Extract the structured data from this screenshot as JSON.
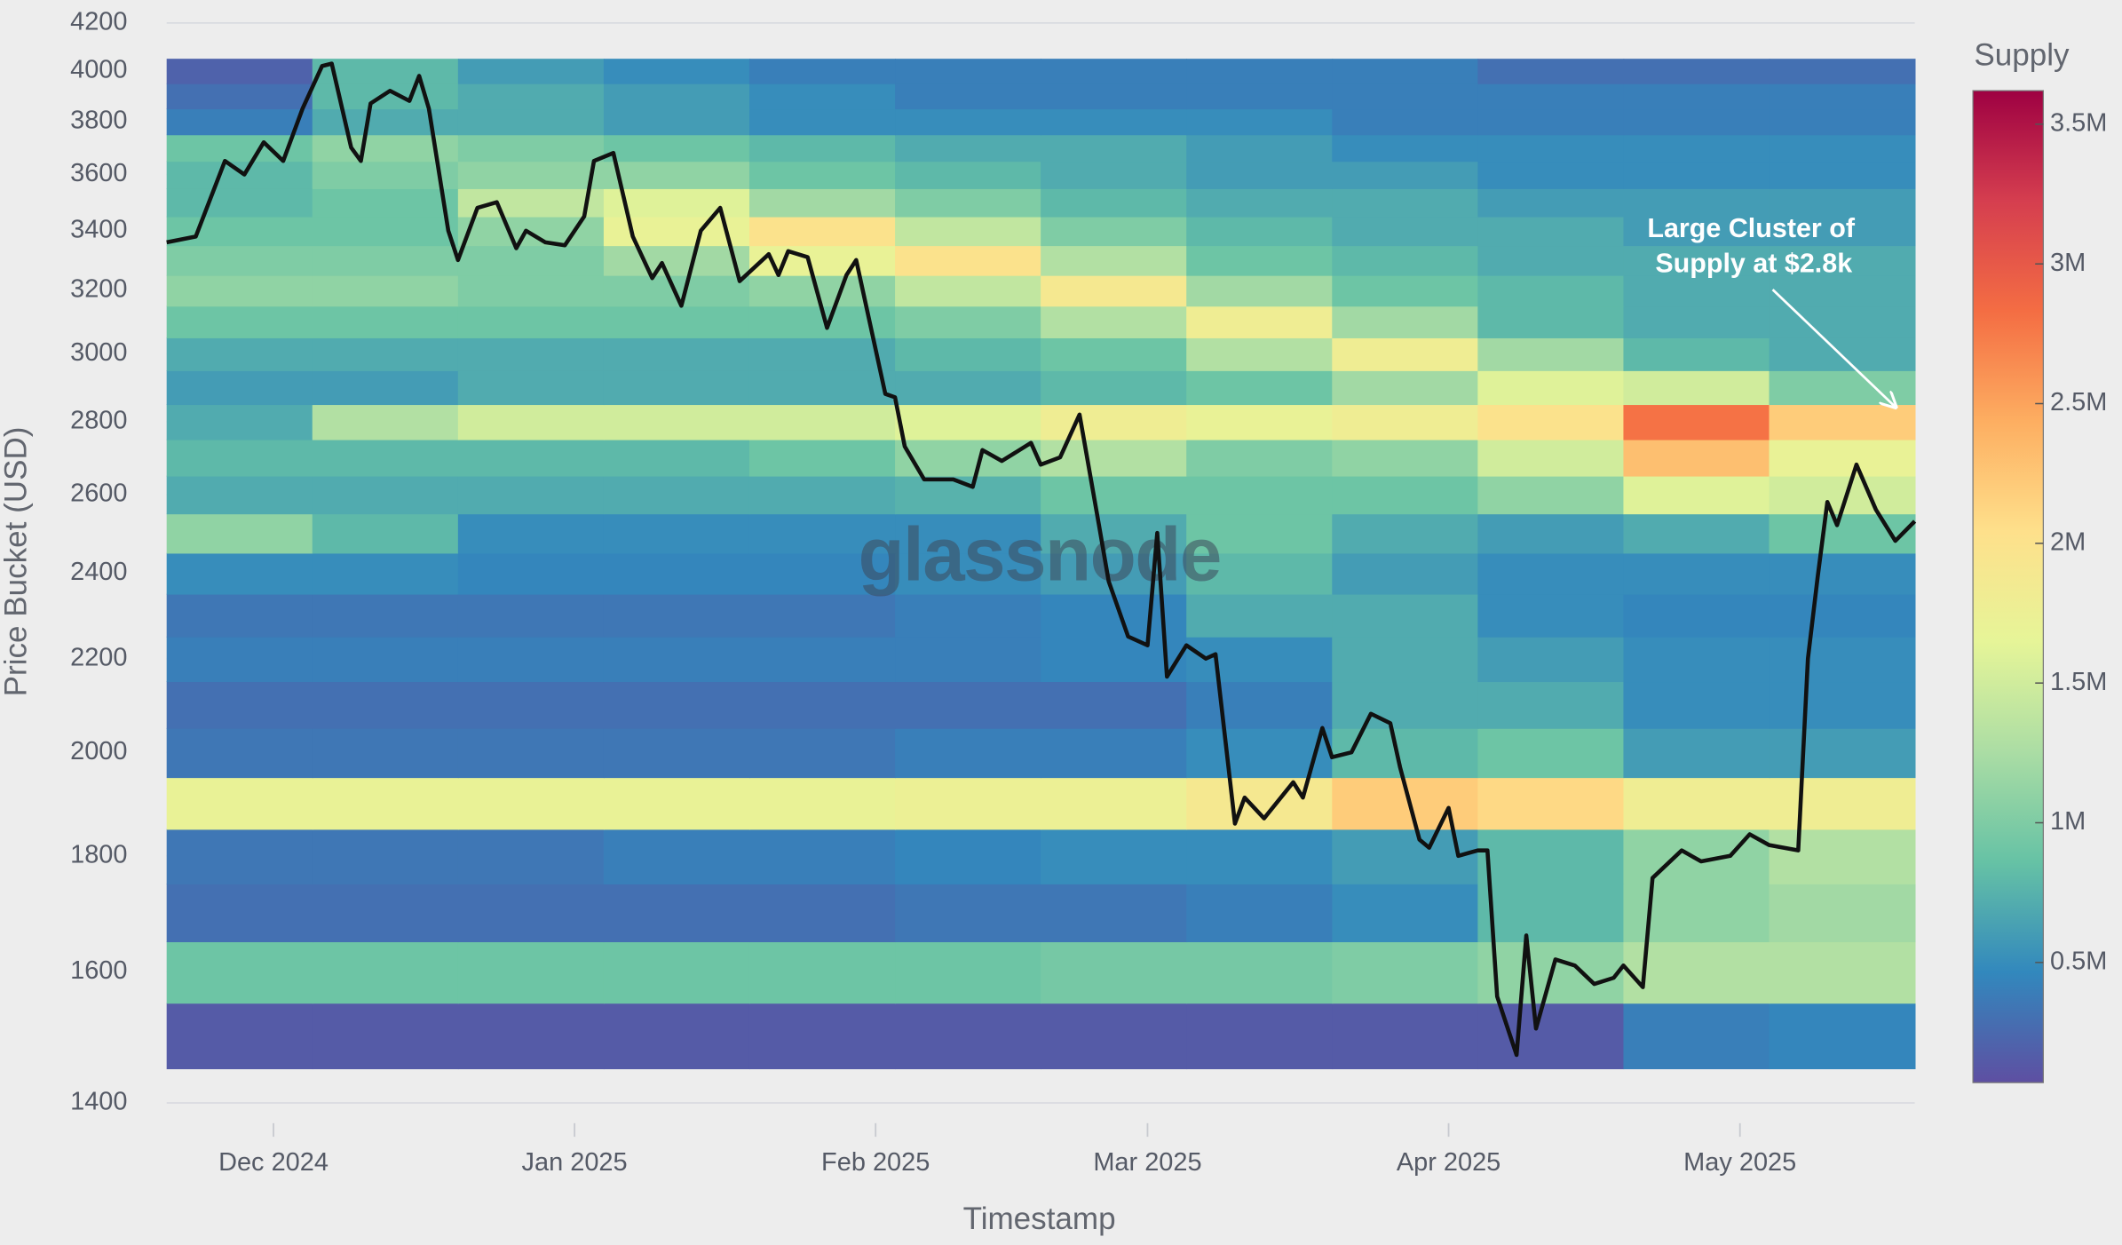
{
  "chart_data": {
    "type": "heatmap",
    "x_label": "Timestamp",
    "y_label": "Price Bucket (USD)",
    "colorbar_title": "Supply",
    "watermark": "glassnode",
    "annotation": [
      "Large Cluster of",
      "Supply at $2.8k"
    ],
    "xlim": [
      "2024-11-20",
      "2025-05-19"
    ],
    "xticks": [
      {
        "value": "2024-12-01",
        "label": "Dec 2024"
      },
      {
        "value": "2025-01-01",
        "label": "Jan 2025"
      },
      {
        "value": "2025-02-01",
        "label": "Feb 2025"
      },
      {
        "value": "2025-03-01",
        "label": "Mar 2025"
      },
      {
        "value": "2025-04-01",
        "label": "Apr 2025"
      },
      {
        "value": "2025-05-01",
        "label": "May 2025"
      }
    ],
    "ylim": [
      1400,
      4200
    ],
    "log_y": true,
    "grid": true,
    "yticks": [
      1400,
      1600,
      1800,
      2000,
      2200,
      2400,
      2600,
      2800,
      3000,
      3200,
      3400,
      3600,
      3800,
      4000,
      4200
    ],
    "colorscale": [
      "#5e4fa2",
      "#3288bd",
      "#66c2a5",
      "#abdda4",
      "#e6f598",
      "#fee08b",
      "#fdae61",
      "#f46d43",
      "#d53e4f",
      "#9e0142"
    ],
    "colorlim": [
      70000,
      3620000
    ],
    "colorticks": [
      {
        "value": 500000,
        "label": "0.5M"
      },
      {
        "value": 1000000,
        "label": "1M"
      },
      {
        "value": 1500000,
        "label": "1.5M"
      },
      {
        "value": 2000000,
        "label": "2M"
      },
      {
        "value": 2500000,
        "label": "2.5M"
      },
      {
        "value": 3000000,
        "label": "3M"
      },
      {
        "value": 3500000,
        "label": "3.5M"
      }
    ],
    "x_bins": [
      "2024-11-20",
      "2024-12-05",
      "2024-12-20",
      "2025-01-04",
      "2025-01-19",
      "2025-02-03",
      "2025-02-18",
      "2025-03-05",
      "2025-03-20",
      "2025-04-04",
      "2025-04-19",
      "2025-05-04",
      "2025-05-19"
    ],
    "y_bins": [
      1450,
      1550,
      1650,
      1750,
      1850,
      1950,
      2050,
      2150,
      2250,
      2350,
      2450,
      2550,
      2650,
      2750,
      2850,
      2950,
      3050,
      3150,
      3250,
      3350,
      3450,
      3550,
      3650,
      3750,
      3850,
      3950,
      4050
    ],
    "z": [
      [
        150000,
        150000,
        150000,
        150000,
        150000,
        150000,
        150000,
        150000,
        150000,
        150000,
        400000,
        450000
      ],
      [
        900000,
        900000,
        900000,
        900000,
        900000,
        900000,
        950000,
        950000,
        1000000,
        1100000,
        1300000,
        1300000
      ],
      [
        300000,
        300000,
        300000,
        300000,
        300000,
        350000,
        350000,
        400000,
        500000,
        800000,
        1100000,
        1200000
      ],
      [
        350000,
        350000,
        350000,
        400000,
        400000,
        450000,
        500000,
        500000,
        600000,
        800000,
        1100000,
        1300000
      ],
      [
        1700000,
        1700000,
        1700000,
        1700000,
        1700000,
        1750000,
        1750000,
        1900000,
        2200000,
        2100000,
        1800000,
        1800000
      ],
      [
        350000,
        350000,
        350000,
        350000,
        350000,
        400000,
        400000,
        500000,
        800000,
        900000,
        600000,
        600000
      ],
      [
        300000,
        300000,
        300000,
        300000,
        300000,
        300000,
        300000,
        400000,
        700000,
        700000,
        500000,
        500000
      ],
      [
        400000,
        400000,
        400000,
        400000,
        400000,
        400000,
        450000,
        500000,
        700000,
        600000,
        500000,
        500000
      ],
      [
        350000,
        350000,
        350000,
        350000,
        350000,
        400000,
        450000,
        700000,
        700000,
        500000,
        450000,
        450000
      ],
      [
        500000,
        500000,
        450000,
        450000,
        450000,
        500000,
        600000,
        800000,
        600000,
        500000,
        500000,
        500000
      ],
      [
        1100000,
        800000,
        500000,
        500000,
        500000,
        500000,
        700000,
        900000,
        700000,
        600000,
        700000,
        900000
      ],
      [
        700000,
        700000,
        700000,
        700000,
        700000,
        750000,
        900000,
        900000,
        900000,
        1100000,
        1600000,
        1500000
      ],
      [
        800000,
        800000,
        800000,
        800000,
        900000,
        1100000,
        1300000,
        1000000,
        1100000,
        1500000,
        2300000,
        1700000
      ],
      [
        700000,
        1300000,
        1500000,
        1500000,
        1500000,
        1600000,
        1800000,
        1700000,
        1800000,
        2000000,
        2800000,
        2200000
      ],
      [
        600000,
        600000,
        700000,
        700000,
        700000,
        700000,
        800000,
        900000,
        1200000,
        1600000,
        1500000,
        1000000
      ],
      [
        700000,
        700000,
        700000,
        700000,
        700000,
        800000,
        900000,
        1300000,
        1800000,
        1200000,
        800000,
        700000
      ],
      [
        900000,
        900000,
        900000,
        900000,
        900000,
        1000000,
        1300000,
        1800000,
        1200000,
        800000,
        700000,
        700000
      ],
      [
        1100000,
        1100000,
        1000000,
        1000000,
        1100000,
        1400000,
        1900000,
        1200000,
        900000,
        800000,
        700000,
        700000
      ],
      [
        1000000,
        1000000,
        1000000,
        1200000,
        1700000,
        2000000,
        1300000,
        900000,
        800000,
        700000,
        700000,
        700000
      ],
      [
        900000,
        900000,
        1100000,
        1700000,
        2000000,
        1400000,
        1000000,
        800000,
        700000,
        700000,
        600000,
        600000
      ],
      [
        800000,
        900000,
        1400000,
        1600000,
        1200000,
        1000000,
        800000,
        700000,
        700000,
        600000,
        600000,
        600000
      ],
      [
        800000,
        1000000,
        1100000,
        1100000,
        900000,
        800000,
        700000,
        600000,
        600000,
        500000,
        500000,
        500000
      ],
      [
        900000,
        1100000,
        1000000,
        900000,
        800000,
        700000,
        700000,
        600000,
        500000,
        500000,
        500000,
        500000
      ],
      [
        400000,
        700000,
        700000,
        600000,
        500000,
        500000,
        500000,
        500000,
        400000,
        400000,
        400000,
        400000
      ],
      [
        300000,
        800000,
        700000,
        600000,
        500000,
        400000,
        400000,
        400000,
        400000,
        400000,
        400000,
        400000
      ],
      [
        200000,
        800000,
        600000,
        500000,
        400000,
        400000,
        400000,
        400000,
        400000,
        300000,
        300000,
        300000
      ]
    ],
    "line": {
      "color": "#111111",
      "x": [
        "2024-11-20",
        "2024-11-23",
        "2024-11-26",
        "2024-11-28",
        "2024-11-30",
        "2024-12-02",
        "2024-12-04",
        "2024-12-06",
        "2024-12-07",
        "2024-12-09",
        "2024-12-10",
        "2024-12-11",
        "2024-12-13",
        "2024-12-15",
        "2024-12-16",
        "2024-12-17",
        "2024-12-19",
        "2024-12-20",
        "2024-12-22",
        "2024-12-24",
        "2024-12-26",
        "2024-12-27",
        "2024-12-29",
        "2024-12-31",
        "2025-01-02",
        "2025-01-03",
        "2025-01-05",
        "2025-01-07",
        "2025-01-09",
        "2025-01-10",
        "2025-01-12",
        "2025-01-14",
        "2025-01-16",
        "2025-01-18",
        "2025-01-21",
        "2025-01-22",
        "2025-01-23",
        "2025-01-25",
        "2025-01-27",
        "2025-01-29",
        "2025-01-30",
        "2025-02-02",
        "2025-02-03",
        "2025-02-04",
        "2025-02-06",
        "2025-02-09",
        "2025-02-11",
        "2025-02-12",
        "2025-02-14",
        "2025-02-17",
        "2025-02-18",
        "2025-02-20",
        "2025-02-22",
        "2025-02-24",
        "2025-02-25",
        "2025-02-27",
        "2025-03-01",
        "2025-03-02",
        "2025-03-03",
        "2025-03-05",
        "2025-03-07",
        "2025-03-08",
        "2025-03-10",
        "2025-03-11",
        "2025-03-13",
        "2025-03-16",
        "2025-03-17",
        "2025-03-19",
        "2025-03-20",
        "2025-03-22",
        "2025-03-24",
        "2025-03-26",
        "2025-03-27",
        "2025-03-29",
        "2025-03-30",
        "2025-04-01",
        "2025-04-02",
        "2025-04-04",
        "2025-04-05",
        "2025-04-06",
        "2025-04-08",
        "2025-04-09",
        "2025-04-10",
        "2025-04-12",
        "2025-04-14",
        "2025-04-16",
        "2025-04-18",
        "2025-04-19",
        "2025-04-21",
        "2025-04-22",
        "2025-04-25",
        "2025-04-27",
        "2025-04-30",
        "2025-05-02",
        "2025-05-04",
        "2025-05-07",
        "2025-05-08",
        "2025-05-09",
        "2025-05-10",
        "2025-05-11",
        "2025-05-13",
        "2025-05-15",
        "2025-05-17",
        "2025-05-19"
      ],
      "values": [
        3360,
        3380,
        3650,
        3600,
        3720,
        3650,
        3850,
        4020,
        4030,
        3700,
        3650,
        3870,
        3920,
        3880,
        3980,
        3850,
        3400,
        3300,
        3480,
        3500,
        3340,
        3400,
        3360,
        3350,
        3450,
        3650,
        3680,
        3380,
        3240,
        3290,
        3150,
        3400,
        3480,
        3230,
        3320,
        3250,
        3330,
        3310,
        3080,
        3250,
        3300,
        2880,
        2870,
        2730,
        2640,
        2640,
        2620,
        2720,
        2690,
        2740,
        2680,
        2700,
        2820,
        2520,
        2380,
        2250,
        2230,
        2500,
        2160,
        2230,
        2200,
        2210,
        1860,
        1910,
        1870,
        1940,
        1910,
        2050,
        1990,
        2000,
        2080,
        2060,
        1970,
        1830,
        1815,
        1890,
        1800,
        1810,
        1810,
        1560,
        1470,
        1660,
        1510,
        1620,
        1610,
        1580,
        1590,
        1610,
        1575,
        1760,
        1810,
        1790,
        1800,
        1840,
        1820,
        1810,
        2200,
        2390,
        2580,
        2520,
        2680,
        2560,
        2480,
        2530
      ]
    }
  }
}
